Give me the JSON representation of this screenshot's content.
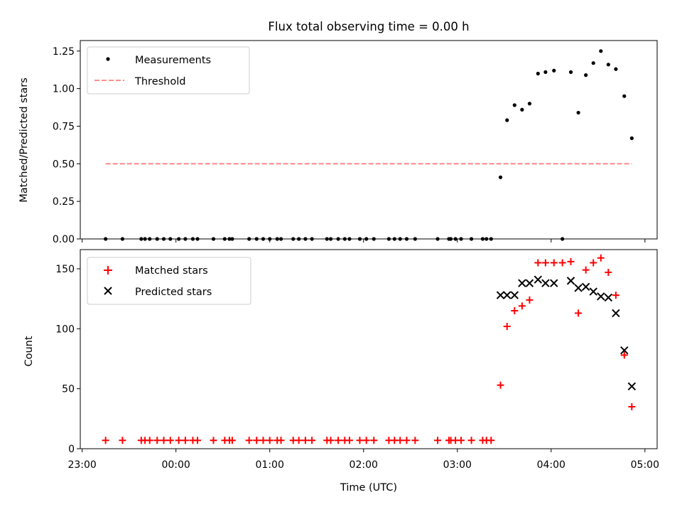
{
  "colors": {
    "measurements": "#000000",
    "threshold": "#ff7f7f",
    "matched": "#ff0000",
    "predicted": "#000000",
    "axis": "#000000"
  },
  "chart_data": [
    {
      "type": "scatter",
      "title": "Flux total observing time = 0.00 h",
      "xlabel": "",
      "ylabel": "Matched/Predicted stars",
      "xlim": [
        -1.02,
        5.13
      ],
      "ylim": [
        0,
        1.32
      ],
      "yticks": [
        0,
        0.25,
        0.5,
        0.75,
        1.0,
        1.25
      ],
      "ytick_labels": [
        "0.00",
        "0.25",
        "0.50",
        "0.75",
        "1.00",
        "1.25"
      ],
      "xticks": [
        -1,
        0,
        1,
        2,
        3,
        4,
        5
      ],
      "legend": {
        "position": "top-left",
        "entries": [
          "Measurements",
          "Threshold"
        ]
      },
      "series": [
        {
          "name": "Measurements",
          "marker": "dot",
          "x": [
            -0.75,
            -0.57,
            -0.37,
            -0.33,
            -0.28,
            -0.2,
            -0.13,
            -0.06,
            0.03,
            0.1,
            0.18,
            0.23,
            0.4,
            0.52,
            0.57,
            0.6,
            0.78,
            0.86,
            0.93,
            1.0,
            1.08,
            1.12,
            1.25,
            1.31,
            1.38,
            1.45,
            1.61,
            1.65,
            1.73,
            1.8,
            1.85,
            1.96,
            2.03,
            2.11,
            2.27,
            2.33,
            2.39,
            2.46,
            2.55,
            2.79,
            2.91,
            2.93,
            2.98,
            3.04,
            3.15,
            3.27,
            3.31,
            3.36,
            3.46,
            3.53,
            3.61,
            3.69,
            3.77,
            3.86,
            3.94,
            4.03,
            4.12,
            4.21,
            4.29,
            4.37,
            4.45,
            4.53,
            4.61,
            4.69,
            4.78,
            4.86
          ],
          "y": [
            0,
            0,
            0,
            0,
            0,
            0,
            0,
            0,
            0,
            0,
            0,
            0,
            0,
            0,
            0,
            0,
            0,
            0,
            0,
            0,
            0,
            0,
            0,
            0,
            0,
            0,
            0,
            0,
            0,
            0,
            0,
            0,
            0,
            0,
            0,
            0,
            0,
            0,
            0,
            0,
            0,
            0,
            0,
            0,
            0,
            0,
            0,
            0,
            0.41,
            0.79,
            0.89,
            0.86,
            0.9,
            1.1,
            1.11,
            1.12,
            0,
            1.11,
            0.84,
            1.09,
            1.17,
            1.25,
            1.16,
            1.13,
            0.95,
            0.67
          ]
        },
        {
          "name": "Threshold",
          "line_style": "dashed",
          "x": [
            -0.75,
            4.86
          ],
          "y": [
            0.5,
            0.5
          ]
        }
      ]
    },
    {
      "type": "scatter",
      "title": "",
      "xlabel": "Time (UTC)",
      "ylabel": "Count",
      "xlim": [
        -1.02,
        5.13
      ],
      "ylim": [
        0,
        166
      ],
      "yticks": [
        0,
        50,
        100,
        150
      ],
      "ytick_labels": [
        "0",
        "50",
        "100",
        "150"
      ],
      "xticks": [
        -1,
        0,
        1,
        2,
        3,
        4,
        5
      ],
      "xtick_labels": [
        "23:00",
        "00:00",
        "01:00",
        "02:00",
        "03:00",
        "04:00",
        "05:00"
      ],
      "legend": {
        "position": "top-left",
        "entries": [
          "Matched stars",
          "Predicted stars"
        ]
      },
      "series": [
        {
          "name": "Matched stars",
          "marker": "plus",
          "x": [
            -0.75,
            -0.57,
            -0.37,
            -0.33,
            -0.28,
            -0.2,
            -0.13,
            -0.06,
            0.03,
            0.1,
            0.18,
            0.23,
            0.4,
            0.52,
            0.57,
            0.6,
            0.78,
            0.86,
            0.93,
            1.0,
            1.08,
            1.12,
            1.25,
            1.31,
            1.38,
            1.45,
            1.61,
            1.65,
            1.73,
            1.8,
            1.85,
            1.96,
            2.03,
            2.11,
            2.27,
            2.33,
            2.39,
            2.46,
            2.55,
            2.79,
            2.91,
            2.93,
            2.98,
            3.04,
            3.15,
            3.27,
            3.31,
            3.36,
            3.46,
            3.53,
            3.61,
            3.69,
            3.77,
            3.86,
            3.94,
            4.03,
            4.12,
            4.21,
            4.29,
            4.37,
            4.45,
            4.53,
            4.61,
            4.69,
            4.78,
            4.86
          ],
          "y": [
            7,
            7,
            7,
            7,
            7,
            7,
            7,
            7,
            7,
            7,
            7,
            7,
            7,
            7,
            7,
            7,
            7,
            7,
            7,
            7,
            7,
            7,
            7,
            7,
            7,
            7,
            7,
            7,
            7,
            7,
            7,
            7,
            7,
            7,
            7,
            7,
            7,
            7,
            7,
            7,
            7,
            7,
            7,
            7,
            7,
            7,
            7,
            7,
            53,
            102,
            115,
            119,
            124,
            155,
            155,
            155,
            155,
            156,
            113,
            149,
            155,
            159,
            147,
            128,
            78,
            35
          ]
        },
        {
          "name": "Predicted stars",
          "marker": "x",
          "x": [
            3.46,
            3.53,
            3.61,
            3.69,
            3.77,
            3.86,
            3.94,
            4.03,
            4.21,
            4.29,
            4.37,
            4.45,
            4.53,
            4.61,
            4.69,
            4.78,
            4.86
          ],
          "y": [
            128,
            128,
            128,
            138,
            138,
            141,
            138,
            138,
            140,
            134,
            135,
            131,
            127,
            126,
            113,
            82,
            52
          ]
        }
      ]
    }
  ]
}
